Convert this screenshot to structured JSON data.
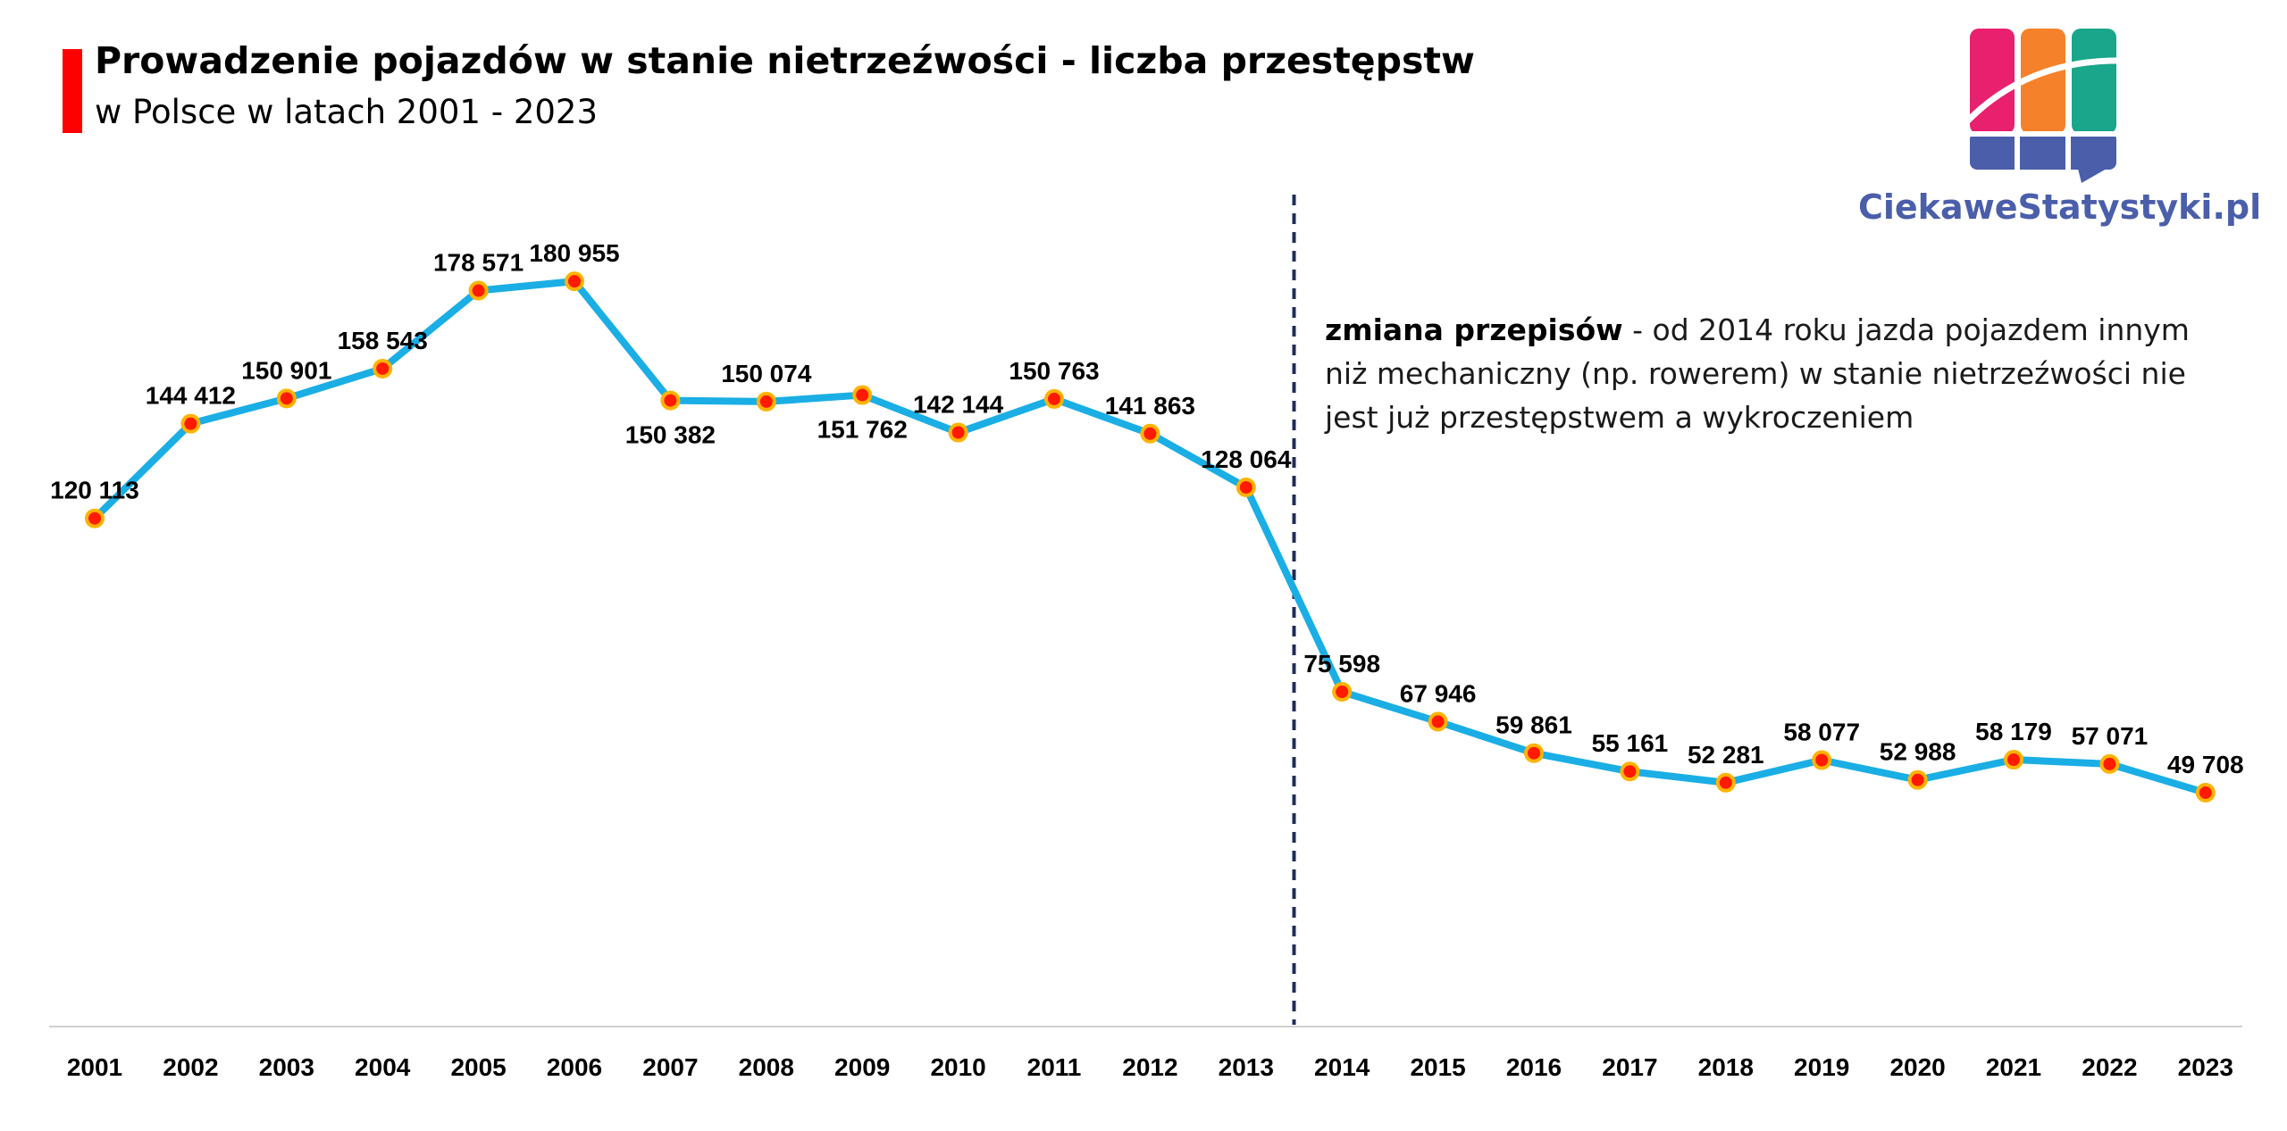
{
  "header": {
    "title": "Prowadzenie pojazdów w stanie nietrzeźwości - liczba przestępstw",
    "subtitle": "w Polsce w latach 2001 - 2023"
  },
  "logo": {
    "text": "CiekaweStatystyki.pl",
    "colors": [
      "#e8206e",
      "#f5822a",
      "#1aa68a",
      "#4a5eaa"
    ]
  },
  "annotation": {
    "bold": "zmiana przepisów",
    "text": " - od 2014 roku jazda pojazdem innym niż mechaniczny (np. rowerem) w stanie nietrzeźwości nie jest już przestępstwem a wykroczeniem"
  },
  "colors": {
    "accent_bar": "#ff0000",
    "line": "#1aaee5",
    "marker_fill": "#ff1a00",
    "marker_stroke": "#ffb300",
    "divider": "#1f2d5a"
  },
  "chart_data": {
    "type": "line",
    "title": "Prowadzenie pojazdów w stanie nietrzeźwości - liczba przestępstw",
    "subtitle": "w Polsce w latach 2001 - 2023",
    "xlabel": "",
    "ylabel": "",
    "categories": [
      "2001",
      "2002",
      "2003",
      "2004",
      "2005",
      "2006",
      "2007",
      "2008",
      "2009",
      "2010",
      "2011",
      "2012",
      "2013",
      "2014",
      "2015",
      "2016",
      "2017",
      "2018",
      "2019",
      "2020",
      "2021",
      "2022",
      "2023"
    ],
    "series": [
      {
        "values": [
          120113,
          144412,
          150901,
          158543,
          178571,
          180955,
          150382,
          150074,
          151762,
          142144,
          150763,
          141863,
          128064,
          75598,
          67946,
          59861,
          55161,
          52281,
          58077,
          52988,
          58179,
          57071,
          49708
        ],
        "labels": [
          "120 113",
          "144 412",
          "150 901",
          "158 543",
          "178 571",
          "180 955",
          "150 382",
          "150 074",
          "151 762",
          "142 144",
          "150 763",
          "141 863",
          "128 064",
          "75 598",
          "67 946",
          "59 861",
          "55 161",
          "52 281",
          "58 077",
          "52 988",
          "58 179",
          "57 071",
          "49 708"
        ]
      }
    ],
    "label_position": [
      "above",
      "above",
      "above",
      "above",
      "above",
      "above",
      "below",
      "above",
      "below",
      "above",
      "above",
      "above",
      "above",
      "above",
      "above",
      "above",
      "above",
      "above",
      "above",
      "above",
      "above",
      "above",
      "above"
    ],
    "divider_between": [
      "2013",
      "2014"
    ],
    "grid": false,
    "legend": "none"
  }
}
